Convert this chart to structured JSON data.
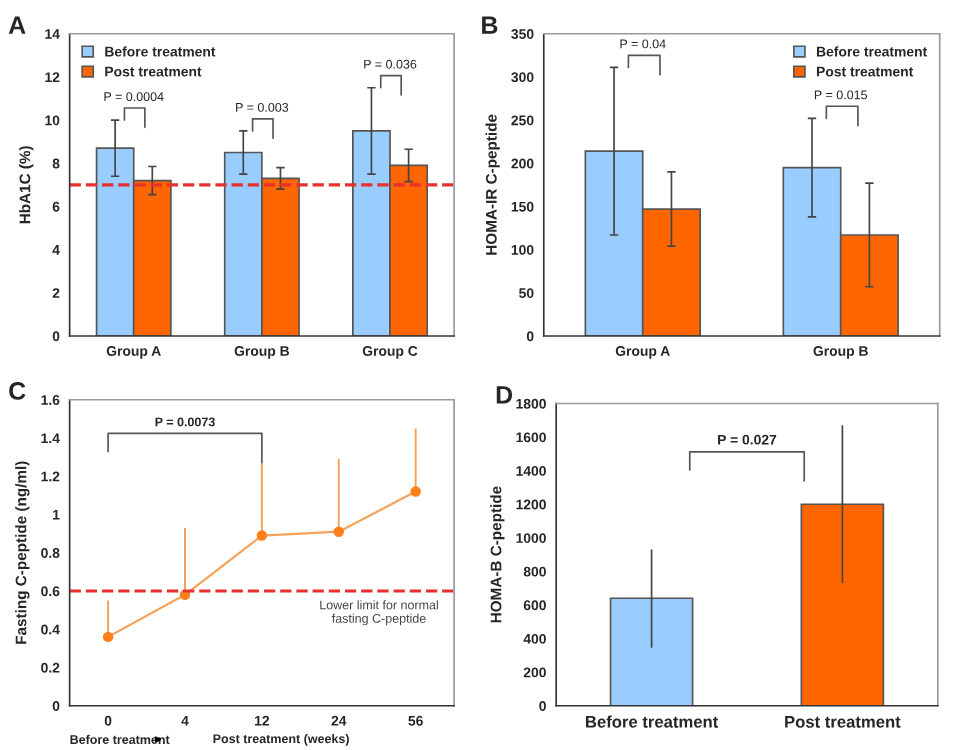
{
  "chart_data": [
    {
      "type": "bar",
      "title": "A",
      "ylabel": "HbA1C (%)",
      "categories": [
        "Group A",
        "Group B",
        "Group C"
      ],
      "series": [
        {
          "name": "Before treatment",
          "color": "#99ccff",
          "values": [
            8.7,
            8.5,
            9.5
          ],
          "errors": [
            1.3,
            1.0,
            2.0
          ]
        },
        {
          "name": "Post treatment",
          "color": "#ff6600",
          "values": [
            7.2,
            7.3,
            7.9
          ],
          "errors": [
            0.65,
            0.5,
            0.75
          ]
        }
      ],
      "ylim": [
        0,
        14
      ],
      "yticks": [
        0,
        2,
        4,
        6,
        8,
        10,
        12,
        14
      ],
      "legend": "top left",
      "grid": false,
      "ref_lines": [
        {
          "axis": "y",
          "value": 7,
          "color": "#e8312f",
          "line_style": "dashed"
        }
      ],
      "annotations": [
        "P = 0.0004",
        "P = 0.003",
        "P = 0.036"
      ]
    },
    {
      "type": "bar",
      "title": "B",
      "ylabel": "HOMA-IR C-peptide",
      "categories": [
        "Group A",
        "Group B"
      ],
      "series": [
        {
          "name": "Before treatment",
          "color": "#99ccff",
          "values": [
            214,
            195
          ],
          "errors": [
            97,
            57
          ]
        },
        {
          "name": "Post treatment",
          "color": "#ff6600",
          "values": [
            147,
            117
          ],
          "errors": [
            43,
            60
          ]
        }
      ],
      "ylim": [
        0,
        350
      ],
      "yticks": [
        0,
        50,
        100,
        150,
        200,
        250,
        300,
        350
      ],
      "legend": "top right",
      "grid": false,
      "annotations": [
        "P = 0.04",
        "P = 0.015"
      ]
    },
    {
      "type": "line",
      "title": "C",
      "ylabel": "Fasting C-peptide (ng/ml)",
      "xlabel": "Post treatment (weeks)",
      "categories": [
        "0",
        "4",
        "12",
        "24",
        "56"
      ],
      "series": [
        {
          "color": "#f7a25a",
          "values": [
            0.36,
            0.58,
            0.89,
            0.91,
            1.12
          ],
          "errors": [
            [
              0.36,
              0.55
            ],
            [
              0.58,
              0.93
            ],
            [
              0.89,
              1.27
            ],
            [
              0.91,
              1.29
            ],
            [
              1.12,
              1.45
            ]
          ]
        }
      ],
      "marker": "circle",
      "ylim": [
        0,
        1.6
      ],
      "yticks": [
        0,
        0.2,
        0.4,
        0.6,
        0.8,
        1,
        1.2,
        1.4,
        1.6
      ],
      "grid": false,
      "ref_lines": [
        {
          "axis": "y",
          "value": 0.6,
          "label": "Lower limit for normal\nfasting C-peptide",
          "color": "#e8312f",
          "line_style": "dashed"
        }
      ],
      "annotations": [
        "P = 0.0073",
        "Before treatment"
      ]
    },
    {
      "type": "bar",
      "title": "D",
      "ylabel": "HOMA-B C-peptide",
      "categories": [
        "Before treatment",
        "Post treatment"
      ],
      "values": [
        640,
        1200
      ],
      "colors": [
        "#99ccff",
        "#ff6600"
      ],
      "errors": [
        [
          345,
          930
        ],
        [
          730,
          1670
        ]
      ],
      "ylim": [
        0,
        1800
      ],
      "yticks": [
        0,
        200,
        400,
        600,
        800,
        1000,
        1200,
        1400,
        1600,
        1800
      ],
      "grid": false,
      "annotations": [
        "P = 0.027"
      ]
    }
  ]
}
